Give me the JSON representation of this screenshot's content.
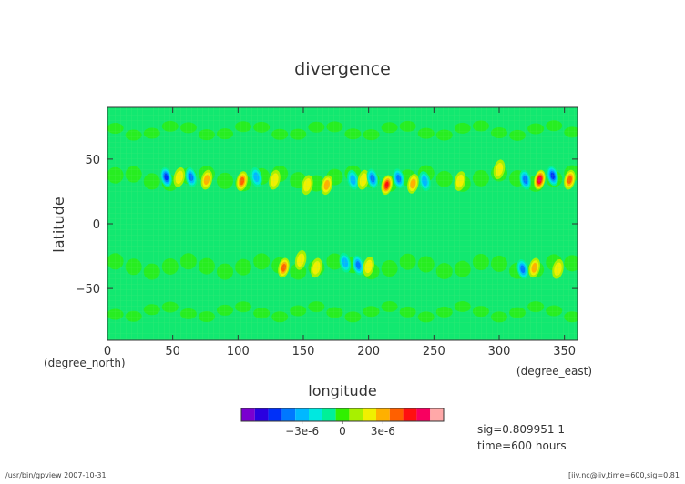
{
  "chart_data": {
    "type": "heatmap",
    "title": "divergence",
    "xlabel": "longitude",
    "ylabel": "latitude",
    "x_unit": "(degree_east)",
    "y_unit": "(degree_north)",
    "xlim": [
      0,
      360
    ],
    "ylim": [
      -90,
      90
    ],
    "x_ticks": [
      "0",
      "50",
      "100",
      "150",
      "200",
      "250",
      "300",
      "350"
    ],
    "y_ticks": [
      "50",
      "0",
      "−50"
    ],
    "colorbar": {
      "colors": [
        "#7a00d0",
        "#2a00e0",
        "#0030f8",
        "#0078ff",
        "#00b8ff",
        "#00e8e0",
        "#00f098",
        "#30f000",
        "#a8f000",
        "#f0f000",
        "#ffb000",
        "#ff6000",
        "#ff1010",
        "#f80060",
        "#ffa8a8"
      ],
      "tick_labels": [
        "−3e-6",
        "0",
        "3e-6"
      ]
    },
    "features": [
      {
        "lon": 45,
        "lat": 36,
        "value": -5e-06
      },
      {
        "lon": 55,
        "lat": 36,
        "value": 2e-06
      },
      {
        "lon": 64,
        "lat": 36,
        "value": -4e-06
      },
      {
        "lon": 76,
        "lat": 34,
        "value": 3e-06
      },
      {
        "lon": 103,
        "lat": 33,
        "value": 4e-06
      },
      {
        "lon": 114,
        "lat": 36,
        "value": -3e-06
      },
      {
        "lon": 128,
        "lat": 34,
        "value": 2e-06
      },
      {
        "lon": 153,
        "lat": 30,
        "value": 2e-06
      },
      {
        "lon": 168,
        "lat": 30,
        "value": 3e-06
      },
      {
        "lon": 188,
        "lat": 34,
        "value": -3e-06
      },
      {
        "lon": 196,
        "lat": 34,
        "value": 2e-06
      },
      {
        "lon": 203,
        "lat": 35,
        "value": -4e-06
      },
      {
        "lon": 214,
        "lat": 30,
        "value": 5e-06
      },
      {
        "lon": 223,
        "lat": 35,
        "value": -4e-06
      },
      {
        "lon": 234,
        "lat": 31,
        "value": 3e-06
      },
      {
        "lon": 243,
        "lat": 33,
        "value": -3e-06
      },
      {
        "lon": 270,
        "lat": 33,
        "value": 2e-06
      },
      {
        "lon": 300,
        "lat": 42,
        "value": 2e-06
      },
      {
        "lon": 320,
        "lat": 34,
        "value": -4e-06
      },
      {
        "lon": 331,
        "lat": 34,
        "value": 6e-06
      },
      {
        "lon": 341,
        "lat": 37,
        "value": -5e-06
      },
      {
        "lon": 354,
        "lat": 34,
        "value": 4e-06
      },
      {
        "lon": 135,
        "lat": -34,
        "value": 4e-06
      },
      {
        "lon": 148,
        "lat": -28,
        "value": 2e-06
      },
      {
        "lon": 160,
        "lat": -34,
        "value": 2e-06
      },
      {
        "lon": 182,
        "lat": -30,
        "value": -3e-06
      },
      {
        "lon": 192,
        "lat": -32,
        "value": -4e-06
      },
      {
        "lon": 200,
        "lat": -33,
        "value": 2e-06
      },
      {
        "lon": 318,
        "lat": -35,
        "value": -4e-06
      },
      {
        "lon": 327,
        "lat": -34,
        "value": 3e-06
      },
      {
        "lon": 345,
        "lat": -35,
        "value": 2e-06
      }
    ]
  },
  "info": {
    "line1": "sig=0.809951 1",
    "line2": "time=600 hours"
  },
  "footer": {
    "left": "/usr/bin/gpview   2007-10-31",
    "right": "[iiv.nc@iiv,time=600,sig=0.81"
  }
}
